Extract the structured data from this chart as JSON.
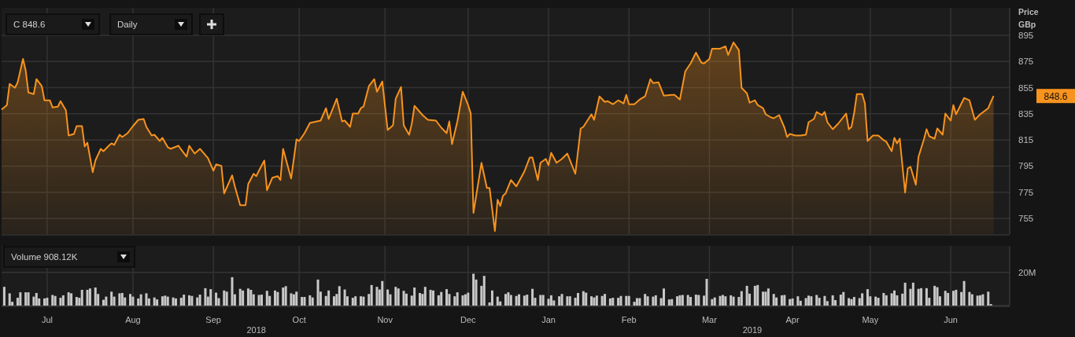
{
  "chart_data": [
    {
      "type": "area",
      "ylabel": "Price GBp",
      "xlim": [
        "2018-06-14",
        "2019-06-25"
      ],
      "ylim": [
        743,
        916
      ],
      "yticks": [
        755,
        775,
        795,
        815,
        835,
        855,
        875,
        895
      ],
      "xticks": [
        {
          "value": "2018-07-01",
          "label": null
        },
        {
          "value": "2018-08-02",
          "label": null
        },
        {
          "value": "2018-09-01",
          "label": null
        },
        {
          "value": "2018-10-03",
          "label": null
        },
        {
          "value": "2018-11-04",
          "label": null
        },
        {
          "value": "2018-12-05",
          "label": null
        },
        {
          "value": "2019-01-04",
          "label": null
        },
        {
          "value": "2019-02-03",
          "label": null
        },
        {
          "value": "2019-03-05",
          "label": null
        },
        {
          "value": "2019-04-05",
          "label": null
        },
        {
          "value": "2019-05-04",
          "label": null
        },
        {
          "value": "2019-06-03",
          "label": null
        }
      ],
      "tick_labels": "y",
      "grid": true,
      "marker": "none",
      "line_style": "solid",
      "annotations": [
        "C 848.6",
        "Daily",
        "848.6"
      ],
      "series": [
        {
          "color": "#f7931e",
          "x": [
            "2018-06-14",
            "2018-06-16",
            "2018-06-17",
            "2018-06-19",
            "2018-06-20",
            "2018-06-22",
            "2018-06-23",
            "2018-06-24",
            "2018-06-26",
            "2018-06-27",
            "2018-06-29",
            "2018-06-30",
            "2018-07-02",
            "2018-07-03",
            "2018-07-05",
            "2018-07-06",
            "2018-07-08",
            "2018-07-09",
            "2018-07-11",
            "2018-07-12",
            "2018-07-14",
            "2018-07-15",
            "2018-07-16",
            "2018-07-18",
            "2018-07-19",
            "2018-07-21",
            "2018-07-22",
            "2018-07-24",
            "2018-07-25",
            "2018-07-26",
            "2018-07-28",
            "2018-07-29",
            "2018-07-31",
            "2018-08-02",
            "2018-08-04",
            "2018-08-06",
            "2018-08-07",
            "2018-08-09",
            "2018-08-10",
            "2018-08-12",
            "2018-08-13",
            "2018-08-15",
            "2018-08-16",
            "2018-08-19",
            "2018-08-20",
            "2018-08-22",
            "2018-08-23",
            "2018-08-25",
            "2018-08-27",
            "2018-08-30",
            "2018-09-01",
            "2018-09-02",
            "2018-09-04",
            "2018-09-05",
            "2018-09-08",
            "2018-09-09",
            "2018-09-11",
            "2018-09-13",
            "2018-09-14",
            "2018-09-16",
            "2018-09-17",
            "2018-09-18",
            "2018-09-20",
            "2018-09-21",
            "2018-09-23",
            "2018-09-25",
            "2018-09-26",
            "2018-09-27",
            "2018-09-30",
            "2018-10-02",
            "2018-10-03",
            "2018-10-05",
            "2018-10-07",
            "2018-10-11",
            "2018-10-13",
            "2018-10-14",
            "2018-10-17",
            "2018-10-19",
            "2018-10-20",
            "2018-10-22",
            "2018-10-23",
            "2018-10-25",
            "2018-10-26",
            "2018-10-27",
            "2018-10-29",
            "2018-10-31",
            "2018-11-01",
            "2018-11-03",
            "2018-11-04",
            "2018-11-05",
            "2018-11-07",
            "2018-11-08",
            "2018-11-10",
            "2018-11-11",
            "2018-11-13",
            "2018-11-14",
            "2018-11-15",
            "2018-11-18",
            "2018-11-20",
            "2018-11-23",
            "2018-11-25",
            "2018-11-27",
            "2018-11-28",
            "2018-11-29",
            "2018-12-01",
            "2018-12-03",
            "2018-12-05",
            "2018-12-06",
            "2018-12-07",
            "2018-12-10",
            "2018-12-12",
            "2018-12-13",
            "2018-12-15",
            "2018-12-16",
            "2018-12-17",
            "2018-12-18",
            "2018-12-19",
            "2018-12-21",
            "2018-12-23",
            "2018-12-26",
            "2018-12-28",
            "2018-12-29",
            "2018-12-31",
            "2019-01-01",
            "2019-01-03",
            "2019-01-04",
            "2019-01-05",
            "2019-01-07",
            "2019-01-09",
            "2019-01-11",
            "2019-01-14",
            "2019-01-16",
            "2019-01-17",
            "2019-01-20",
            "2019-01-21",
            "2019-01-23",
            "2019-01-25",
            "2019-01-26",
            "2019-01-28",
            "2019-01-30",
            "2019-02-01",
            "2019-02-02",
            "2019-02-03",
            "2019-02-05",
            "2019-02-07",
            "2019-02-09",
            "2019-02-11",
            "2019-02-12",
            "2019-02-14",
            "2019-02-16",
            "2019-02-19",
            "2019-02-20",
            "2019-02-22",
            "2019-02-24",
            "2019-02-26",
            "2019-02-28",
            "2019-03-02",
            "2019-03-03",
            "2019-03-05",
            "2019-03-06",
            "2019-03-09",
            "2019-03-11",
            "2019-03-12",
            "2019-03-14",
            "2019-03-16",
            "2019-03-17",
            "2019-03-19",
            "2019-03-20",
            "2019-03-22",
            "2019-03-23",
            "2019-03-25",
            "2019-03-26",
            "2019-03-28",
            "2019-03-29",
            "2019-03-31",
            "2019-04-02",
            "2019-04-03",
            "2019-04-04",
            "2019-04-06",
            "2019-04-08",
            "2019-04-10",
            "2019-04-11",
            "2019-04-13",
            "2019-04-14",
            "2019-04-16",
            "2019-04-17",
            "2019-04-18",
            "2019-04-20",
            "2019-04-22",
            "2019-04-25",
            "2019-04-26",
            "2019-04-27",
            "2019-04-28",
            "2019-04-29",
            "2019-05-01",
            "2019-05-02",
            "2019-05-03",
            "2019-05-05",
            "2019-05-07",
            "2019-05-09",
            "2019-05-10",
            "2019-05-12",
            "2019-05-13",
            "2019-05-14",
            "2019-05-15",
            "2019-05-17",
            "2019-05-18",
            "2019-05-19",
            "2019-05-21",
            "2019-05-22",
            "2019-05-24",
            "2019-05-25",
            "2019-05-26",
            "2019-05-28",
            "2019-05-29",
            "2019-05-31",
            "2019-06-01",
            "2019-06-03",
            "2019-06-04",
            "2019-06-05",
            "2019-06-08",
            "2019-06-10",
            "2019-06-12",
            "2019-06-14",
            "2019-06-17",
            "2019-06-18",
            "2019-06-19"
          ],
          "values": [
            838.2,
            841.7,
            857.9,
            854.9,
            859.1,
            877.0,
            868.1,
            851.3,
            850.1,
            861.5,
            856.1,
            845.3,
            845.3,
            839.9,
            840.5,
            844.7,
            837.6,
            818.4,
            819.6,
            825.6,
            825.6,
            810.0,
            813.0,
            790.3,
            799.3,
            808.2,
            806.4,
            810.6,
            812.4,
            811.2,
            819.0,
            817.2,
            820.2,
            825.6,
            830.4,
            831.0,
            825.0,
            818.4,
            819.0,
            814.2,
            816.6,
            809.4,
            808.2,
            810.6,
            807.6,
            802.2,
            810.6,
            804.6,
            808.2,
            801.0,
            791.5,
            796.3,
            795.1,
            774.1,
            787.9,
            779.5,
            765.1,
            765.1,
            781.3,
            789.1,
            787.3,
            791.5,
            799.3,
            776.5,
            786.1,
            787.3,
            784.3,
            808.2,
            785.5,
            815.4,
            814.2,
            820.2,
            828.0,
            829.8,
            839.3,
            831.0,
            846.5,
            829.2,
            829.8,
            825.0,
            835.2,
            835.2,
            839.3,
            840.5,
            856.1,
            861.5,
            851.9,
            859.7,
            841.1,
            822.6,
            826.2,
            846.5,
            855.5,
            826.2,
            819.0,
            827.4,
            841.1,
            834.0,
            830.4,
            829.8,
            824.4,
            820.2,
            829.2,
            811.8,
            829.2,
            851.9,
            841.7,
            835.2,
            759.2,
            797.5,
            778.3,
            778.3,
            745.4,
            769.3,
            764.5,
            772.3,
            774.1,
            784.3,
            779.5,
            790.9,
            801.6,
            801.6,
            784.3,
            797.5,
            800.5,
            795.7,
            805.2,
            797.5,
            800.5,
            804.6,
            789.1,
            823.8,
            825.0,
            834.6,
            830.4,
            848.3,
            844.1,
            844.7,
            842.3,
            845.3,
            842.9,
            849.5,
            842.3,
            842.3,
            845.9,
            848.3,
            861.5,
            858.5,
            859.1,
            848.9,
            849.5,
            849.5,
            845.9,
            867.5,
            873.5,
            881.8,
            874.1,
            873.5,
            877.0,
            884.8,
            884.8,
            886.6,
            880.0,
            889.6,
            883.6,
            854.9,
            850.7,
            843.5,
            845.3,
            841.7,
            839.3,
            834.6,
            832.2,
            831.6,
            834.0,
            824.4,
            817.2,
            819.6,
            818.4,
            818.4,
            819.0,
            828.6,
            831.0,
            836.4,
            834.0,
            836.4,
            828.6,
            823.2,
            827.4,
            835.2,
            823.2,
            825.0,
            835.8,
            850.1,
            850.1,
            842.9,
            814.2,
            818.4,
            818.4,
            814.8,
            813.6,
            806.4,
            816.6,
            812.4,
            816.0,
            774.7,
            793.3,
            794.5,
            780.7,
            802.2,
            815.4,
            823.2,
            817.8,
            816.0,
            823.8,
            819.0,
            835.2,
            829.8,
            841.7,
            834.6,
            847.1,
            845.3,
            830.4,
            834.6,
            839.3,
            844.1,
            848.6
          ]
        }
      ]
    },
    {
      "type": "bar",
      "xlim": [
        "2018-06-14",
        "2019-06-25"
      ],
      "ylim": [
        0,
        36
      ],
      "yticks": [
        {
          "value": 0,
          "label": null
        },
        {
          "value": 20,
          "label": "20M"
        }
      ],
      "xticks": [
        {
          "value": "2018-07-01",
          "label": "Jul"
        },
        {
          "value": "2018-08-02",
          "label": "Aug"
        },
        {
          "value": "2018-09-01",
          "label": "Sep"
        },
        {
          "value": "2018-10-03",
          "label": "Oct"
        },
        {
          "value": "2018-11-04",
          "label": "Nov"
        },
        {
          "value": "2018-12-05",
          "label": "Dec"
        },
        {
          "value": "2019-01-04",
          "label": "Jan"
        },
        {
          "value": "2019-02-03",
          "label": "Feb"
        },
        {
          "value": "2019-03-05",
          "label": "Mar"
        },
        {
          "value": "2019-04-05",
          "label": "Apr"
        },
        {
          "value": "2019-05-04",
          "label": "May"
        },
        {
          "value": "2019-06-03",
          "label": "Jun"
        }
      ],
      "x2lim": [
        "2018-06-14",
        "2019-06-25"
      ],
      "x2ticks": [
        {
          "value": "2018-09-17",
          "label": "2018"
        },
        {
          "value": "2019-03-21",
          "label": "2019"
        }
      ],
      "grid": true,
      "annotations": [
        "Volume 908.12K"
      ],
      "series": [
        {
          "color": "#c8c8c8",
          "x": [
            "2018-06-15",
            "2018-06-17",
            "2018-06-18",
            "2018-06-20",
            "2018-06-21",
            "2018-06-23",
            "2018-06-24",
            "2018-06-26",
            "2018-06-27",
            "2018-06-28",
            "2018-06-30",
            "2018-07-01",
            "2018-07-03",
            "2018-07-04",
            "2018-07-06",
            "2018-07-07",
            "2018-07-09",
            "2018-07-10",
            "2018-07-12",
            "2018-07-13",
            "2018-07-14",
            "2018-07-16",
            "2018-07-17",
            "2018-07-19",
            "2018-07-20",
            "2018-07-22",
            "2018-07-23",
            "2018-07-25",
            "2018-07-26",
            "2018-07-28",
            "2018-07-29",
            "2018-07-30",
            "2018-08-01",
            "2018-08-02",
            "2018-08-04",
            "2018-08-05",
            "2018-08-07",
            "2018-08-08",
            "2018-08-10",
            "2018-08-11",
            "2018-08-13",
            "2018-08-14",
            "2018-08-15",
            "2018-08-17",
            "2018-08-18",
            "2018-08-20",
            "2018-08-21",
            "2018-08-23",
            "2018-08-24",
            "2018-08-26",
            "2018-08-27",
            "2018-08-29",
            "2018-08-30",
            "2018-08-31",
            "2018-09-02",
            "2018-09-03",
            "2018-09-05",
            "2018-09-06",
            "2018-09-08",
            "2018-09-09",
            "2018-09-11",
            "2018-09-12",
            "2018-09-14",
            "2018-09-15",
            "2018-09-16",
            "2018-09-18",
            "2018-09-19",
            "2018-09-21",
            "2018-09-22",
            "2018-09-24",
            "2018-09-25",
            "2018-09-27",
            "2018-09-28",
            "2018-09-30",
            "2018-10-01",
            "2018-10-02",
            "2018-10-04",
            "2018-10-05",
            "2018-10-07",
            "2018-10-08",
            "2018-10-10",
            "2018-10-11",
            "2018-10-13",
            "2018-10-14",
            "2018-10-16",
            "2018-10-17",
            "2018-10-18",
            "2018-10-20",
            "2018-10-21",
            "2018-10-23",
            "2018-10-24",
            "2018-10-26",
            "2018-10-27",
            "2018-10-29",
            "2018-10-30",
            "2018-11-01",
            "2018-11-02",
            "2018-11-03",
            "2018-11-05",
            "2018-11-06",
            "2018-11-08",
            "2018-11-09",
            "2018-11-11",
            "2018-11-12",
            "2018-11-14",
            "2018-11-15",
            "2018-11-17",
            "2018-11-18",
            "2018-11-19",
            "2018-11-21",
            "2018-11-22",
            "2018-11-24",
            "2018-11-25",
            "2018-11-27",
            "2018-11-28",
            "2018-11-30",
            "2018-12-01",
            "2018-12-03",
            "2018-12-04",
            "2018-12-05",
            "2018-12-07",
            "2018-12-08",
            "2018-12-10",
            "2018-12-11",
            "2018-12-13",
            "2018-12-14",
            "2018-12-16",
            "2018-12-17",
            "2018-12-19",
            "2018-12-20",
            "2018-12-21",
            "2018-12-23",
            "2018-12-24",
            "2018-12-26",
            "2018-12-27",
            "2018-12-29",
            "2018-12-30",
            "2019-01-01",
            "2019-01-02",
            "2019-01-04",
            "2019-01-05",
            "2019-01-06",
            "2019-01-08",
            "2019-01-09",
            "2019-01-11",
            "2019-01-12",
            "2019-01-14",
            "2019-01-15",
            "2019-01-17",
            "2019-01-18",
            "2019-01-20",
            "2019-01-21",
            "2019-01-22",
            "2019-01-24",
            "2019-01-25",
            "2019-01-27",
            "2019-01-28",
            "2019-01-30",
            "2019-01-31",
            "2019-02-02",
            "2019-02-03",
            "2019-02-05",
            "2019-02-06",
            "2019-02-07",
            "2019-02-09",
            "2019-02-10",
            "2019-02-12",
            "2019-02-13",
            "2019-02-15",
            "2019-02-16",
            "2019-02-18",
            "2019-02-19",
            "2019-02-21",
            "2019-02-22",
            "2019-02-23",
            "2019-02-25",
            "2019-02-26",
            "2019-02-28",
            "2019-03-01",
            "2019-03-03",
            "2019-03-04",
            "2019-03-06",
            "2019-03-07",
            "2019-03-09",
            "2019-03-10",
            "2019-03-11",
            "2019-03-13",
            "2019-03-14",
            "2019-03-16",
            "2019-03-17",
            "2019-03-19",
            "2019-03-20",
            "2019-03-22",
            "2019-03-23",
            "2019-03-25",
            "2019-03-26",
            "2019-03-27",
            "2019-03-29",
            "2019-03-30",
            "2019-04-01",
            "2019-04-02",
            "2019-04-04",
            "2019-04-05",
            "2019-04-07",
            "2019-04-08",
            "2019-04-10",
            "2019-04-11",
            "2019-04-12",
            "2019-04-14",
            "2019-04-15",
            "2019-04-17",
            "2019-04-18",
            "2019-04-20",
            "2019-04-21",
            "2019-04-23",
            "2019-04-24",
            "2019-04-26",
            "2019-04-27",
            "2019-04-28",
            "2019-04-30",
            "2019-05-01",
            "2019-05-03",
            "2019-05-04",
            "2019-05-06",
            "2019-05-07",
            "2019-05-09",
            "2019-05-10",
            "2019-05-12",
            "2019-05-13",
            "2019-05-14",
            "2019-05-16",
            "2019-05-17",
            "2019-05-19",
            "2019-05-20",
            "2019-05-22",
            "2019-05-23",
            "2019-05-25",
            "2019-05-26",
            "2019-05-28",
            "2019-05-29",
            "2019-05-30",
            "2019-06-01",
            "2019-06-02",
            "2019-06-04",
            "2019-06-05",
            "2019-06-07",
            "2019-06-08",
            "2019-06-10",
            "2019-06-11",
            "2019-06-13",
            "2019-06-14",
            "2019-06-15",
            "2019-06-17",
            "2019-06-18"
          ],
          "values": [
            11.3,
            7.4,
            2.3,
            4.7,
            8.0,
            8.0,
            8.0,
            5.4,
            7.6,
            4.3,
            4.3,
            4.7,
            6.4,
            5.8,
            4.7,
            6.2,
            8.0,
            7.4,
            5.2,
            4.7,
            9.5,
            9.5,
            10.3,
            10.9,
            7.0,
            3.5,
            5.4,
            8.4,
            5.4,
            7.4,
            7.6,
            4.9,
            7.0,
            5.4,
            4.3,
            6.8,
            7.4,
            4.3,
            4.9,
            3.7,
            5.6,
            6.0,
            5.4,
            4.9,
            4.3,
            4.7,
            6.6,
            6.2,
            5.8,
            4.9,
            6.6,
            10.5,
            5.4,
            9.9,
            7.8,
            4.5,
            9.1,
            8.4,
            17.1,
            6.8,
            10.1,
            9.1,
            10.3,
            9.5,
            6.8,
            6.4,
            6.6,
            8.9,
            5.8,
            9.1,
            8.2,
            10.9,
            11.7,
            7.4,
            6.8,
            8.4,
            5.2,
            5.2,
            6.2,
            4.9,
            15.7,
            8.4,
            5.8,
            9.1,
            5.6,
            7.0,
            11.7,
            9.7,
            5.6,
            4.7,
            5.6,
            5.6,
            5.4,
            7.0,
            12.4,
            11.3,
            9.7,
            14.8,
            9.7,
            6.8,
            11.3,
            10.3,
            8.9,
            7.2,
            6.0,
            10.9,
            7.6,
            7.0,
            11.3,
            9.5,
            9.1,
            6.2,
            8.2,
            9.9,
            7.0,
            5.6,
            8.0,
            6.2,
            6.8,
            7.8,
            19.2,
            15.7,
            11.9,
            17.9,
            1.9,
            9.1,
            5.4,
            2.5,
            7.0,
            8.0,
            6.4,
            5.8,
            6.8,
            6.0,
            6.6,
            10.1,
            4.7,
            6.4,
            6.4,
            4.1,
            6.2,
            3.1,
            5.6,
            7.0,
            5.6,
            5.6,
            4.7,
            7.6,
            8.7,
            7.8,
            5.6,
            4.9,
            6.0,
            5.8,
            7.0,
            4.3,
            4.7,
            4.7,
            5.8,
            5.8,
            5.8,
            2.3,
            4.5,
            4.5,
            7.0,
            5.6,
            5.4,
            6.2,
            4.5,
            10.3,
            3.7,
            3.9,
            5.6,
            6.2,
            6.4,
            6.4,
            5.2,
            6.6,
            6.4,
            6.0,
            16.1,
            3.9,
            4.9,
            5.8,
            6.4,
            5.6,
            6.2,
            5.4,
            5.2,
            8.7,
            11.9,
            7.2,
            11.9,
            12.4,
            8.4,
            8.4,
            10.3,
            7.0,
            4.9,
            6.2,
            6.4,
            3.9,
            4.3,
            5.6,
            2.9,
            4.5,
            6.0,
            5.6,
            6.4,
            4.7,
            5.8,
            2.7,
            6.2,
            3.3,
            6.6,
            8.2,
            4.5,
            3.9,
            5.2,
            4.5,
            7.4,
            9.9,
            5.6,
            5.4,
            4.7,
            7.6,
            6.2,
            7.4,
            9.1,
            6.2,
            7.2,
            13.8,
            10.1,
            13.8,
            10.1,
            10.5,
            10.5,
            4.7,
            11.9,
            11.1,
            5.6,
            8.9,
            7.6,
            8.9,
            9.5,
            8.2,
            14.8,
            8.2,
            6.8,
            6.0,
            6.2,
            6.8,
            8.4,
            0.9
          ]
        }
      ]
    }
  ]
}
